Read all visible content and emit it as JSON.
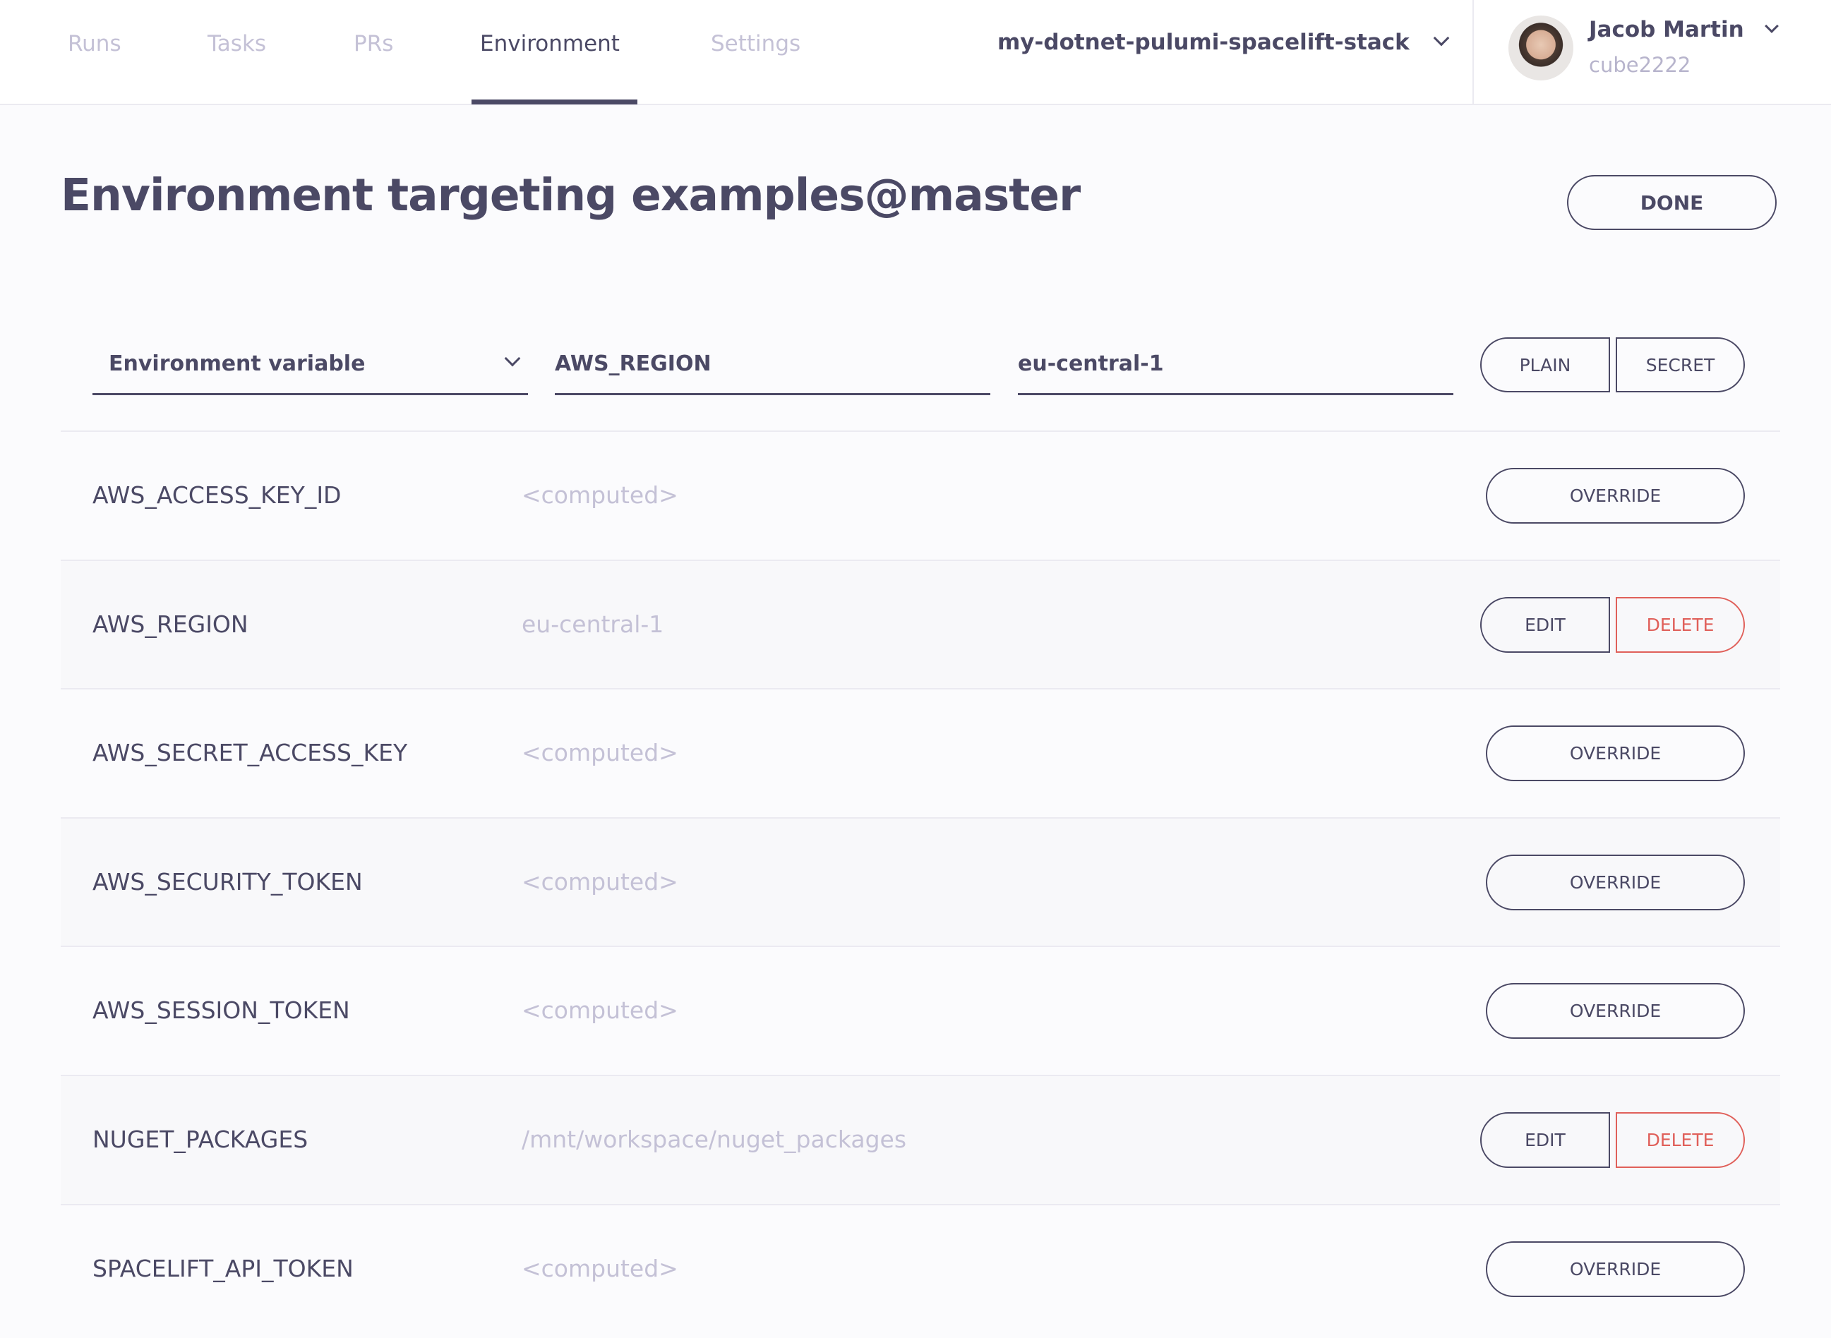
{
  "nav": {
    "tabs": [
      {
        "label": "Runs"
      },
      {
        "label": "Tasks"
      },
      {
        "label": "PRs"
      },
      {
        "label": "Environment",
        "active": true
      },
      {
        "label": "Settings"
      }
    ],
    "stack_name": "my-dotnet-pulumi-spacelift-stack"
  },
  "user": {
    "name": "Jacob Martin",
    "handle": "cube2222"
  },
  "page": {
    "title": "Environment targeting examples@master",
    "done_label": "DONE"
  },
  "form": {
    "type_select": "Environment variable",
    "name_value": "AWS_REGION",
    "value_value": "eu-central-1",
    "plain_label": "PLAIN",
    "secret_label": "SECRET"
  },
  "colors": {
    "text": "#4b4965",
    "muted": "#c4c1d6",
    "danger": "#e0605a"
  },
  "rows": [
    {
      "name": "AWS_ACCESS_KEY_ID",
      "value": "<computed>",
      "actions": [
        "OVERRIDE"
      ]
    },
    {
      "name": "AWS_REGION",
      "value": "eu-central-1",
      "actions": [
        "EDIT",
        "DELETE"
      ]
    },
    {
      "name": "AWS_SECRET_ACCESS_KEY",
      "value": "<computed>",
      "actions": [
        "OVERRIDE"
      ]
    },
    {
      "name": "AWS_SECURITY_TOKEN",
      "value": "<computed>",
      "actions": [
        "OVERRIDE"
      ]
    },
    {
      "name": "AWS_SESSION_TOKEN",
      "value": "<computed>",
      "actions": [
        "OVERRIDE"
      ]
    },
    {
      "name": "NUGET_PACKAGES",
      "value": "/mnt/workspace/nuget_packages",
      "actions": [
        "EDIT",
        "DELETE"
      ]
    },
    {
      "name": "SPACELIFT_API_TOKEN",
      "value": "<computed>",
      "actions": [
        "OVERRIDE"
      ]
    }
  ]
}
